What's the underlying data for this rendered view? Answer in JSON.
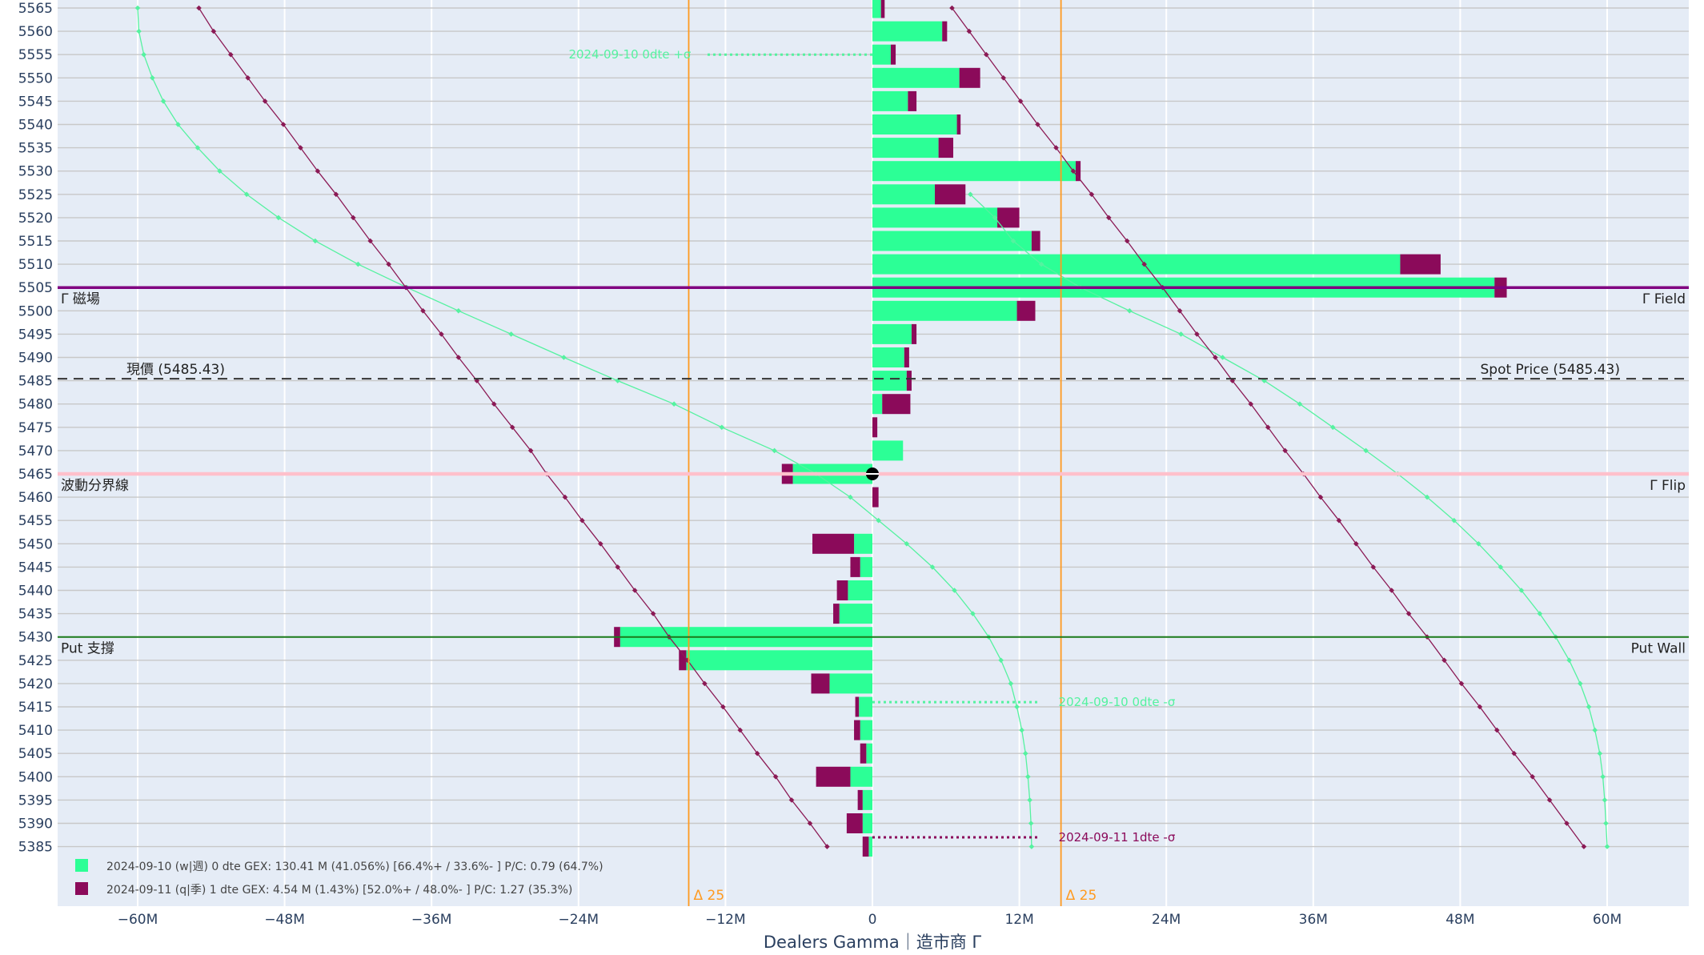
{
  "chart_data": {
    "type": "bar",
    "orientation": "horizontal",
    "xlabel": "Dealers Gamma｜造市商 Γ",
    "xlim": [
      -66000000,
      68000000
    ],
    "ylim": [
      5381,
      5567
    ],
    "x_ticks": [
      {
        "value": -60000000,
        "label": "−60M"
      },
      {
        "value": -48000000,
        "label": "−48M"
      },
      {
        "value": -36000000,
        "label": "−36M"
      },
      {
        "value": -24000000,
        "label": "−24M"
      },
      {
        "value": -12000000,
        "label": "−12M"
      },
      {
        "value": 0,
        "label": "0"
      },
      {
        "value": 12000000,
        "label": "12M"
      },
      {
        "value": 24000000,
        "label": "24M"
      },
      {
        "value": 36000000,
        "label": "36M"
      },
      {
        "value": 48000000,
        "label": "48M"
      },
      {
        "value": 60000000,
        "label": "60M"
      }
    ],
    "y_ticks": [
      5385,
      5390,
      5395,
      5400,
      5405,
      5410,
      5415,
      5420,
      5425,
      5430,
      5435,
      5440,
      5445,
      5450,
      5455,
      5460,
      5465,
      5470,
      5475,
      5480,
      5485,
      5490,
      5495,
      5500,
      5505,
      5510,
      5515,
      5520,
      5525,
      5530,
      5535,
      5540,
      5545,
      5550,
      5555,
      5560,
      5565
    ],
    "grid": true,
    "colors": {
      "series_0dte": "#2cff96",
      "series_1dte": "#8b0a5a",
      "line_0dte": "#55f2a0",
      "line_1dte": "#8b1a55",
      "gamma_field": "#800080",
      "gamma_flip": "#ffc0cb",
      "put_wall": "#1a7a1a",
      "spot": "#333333",
      "delta": "#ff9a1f",
      "plot_bg": "#e5ecf6"
    },
    "series": [
      {
        "name": "2024-09-10 (w|週)",
        "strikes": [
          5565,
          5560,
          5555,
          5550,
          5545,
          5540,
          5535,
          5530,
          5525,
          5520,
          5515,
          5510,
          5505,
          5500,
          5495,
          5490,
          5485,
          5480,
          5475,
          5470,
          5465,
          5460,
          5455,
          5450,
          5445,
          5440,
          5435,
          5430,
          5425,
          5420,
          5415,
          5410,
          5405,
          5400,
          5395,
          5390,
          5385
        ],
        "values": [
          700000,
          5700000,
          1500000,
          7100000,
          2900000,
          6900000,
          5400000,
          16600000,
          5100000,
          10200000,
          13000000,
          43100000,
          50800000,
          11800000,
          3200000,
          2600000,
          2800000,
          800000,
          0,
          2500000,
          -6500000,
          0,
          0,
          -1500000,
          -1000000,
          -2000000,
          -2700000,
          -20600000,
          -15200000,
          -3500000,
          -1100000,
          -1000000,
          -500000,
          -1800000,
          -800000,
          -800000,
          -300000
        ]
      },
      {
        "name": "2024-09-11 (q|季)",
        "strikes": [
          5565,
          5560,
          5555,
          5550,
          5545,
          5540,
          5535,
          5530,
          5525,
          5520,
          5515,
          5510,
          5505,
          5500,
          5495,
          5490,
          5485,
          5480,
          5475,
          5470,
          5465,
          5460,
          5455,
          5450,
          5445,
          5440,
          5435,
          5430,
          5425,
          5420,
          5415,
          5410,
          5405,
          5400,
          5395,
          5390,
          5385
        ],
        "values": [
          300000,
          400000,
          400000,
          1700000,
          700000,
          300000,
          1200000,
          400000,
          2500000,
          1800000,
          700000,
          3300000,
          1000000,
          1500000,
          400000,
          400000,
          400000,
          2300000,
          400000,
          0,
          -900000,
          500000,
          0,
          -3400000,
          -800000,
          -900000,
          -500000,
          -500000,
          -600000,
          -1500000,
          -300000,
          -500000,
          -500000,
          -2800000,
          -400000,
          -1300000,
          -500000
        ]
      }
    ],
    "profile_lines": [
      {
        "name": "2024-09-10 0dte",
        "color": "#55f2a0",
        "left": [
          [
            5565,
            -60000000
          ],
          [
            5560,
            -59900000
          ],
          [
            5555,
            -59500000
          ],
          [
            5550,
            -58800000
          ],
          [
            5545,
            -57900000
          ],
          [
            5540,
            -56700000
          ],
          [
            5535,
            -55100000
          ],
          [
            5530,
            -53300000
          ],
          [
            5525,
            -51100000
          ],
          [
            5520,
            -48500000
          ],
          [
            5515,
            -45500000
          ],
          [
            5510,
            -42000000
          ],
          [
            5505,
            -38000000
          ],
          [
            5500,
            -33800000
          ],
          [
            5495,
            -29500000
          ],
          [
            5490,
            -25200000
          ],
          [
            5485,
            -20800000
          ],
          [
            5480,
            -16200000
          ],
          [
            5475,
            -12300000
          ],
          [
            5470,
            -8000000
          ],
          [
            5465,
            -4600000
          ],
          [
            5460,
            -1800000
          ],
          [
            5455,
            500000
          ],
          [
            5450,
            2800000
          ],
          [
            5445,
            4900000
          ],
          [
            5440,
            6700000
          ],
          [
            5435,
            8200000
          ],
          [
            5430,
            9500000
          ],
          [
            5425,
            10500000
          ],
          [
            5420,
            11300000
          ],
          [
            5415,
            11800000
          ],
          [
            5410,
            12200000
          ],
          [
            5405,
            12500000
          ],
          [
            5400,
            12700000
          ],
          [
            5395,
            12850000
          ],
          [
            5390,
            12950000
          ],
          [
            5385,
            13000000
          ]
        ],
        "right": [
          [
            5525,
            8000000
          ],
          [
            5520,
            10000000
          ],
          [
            5515,
            11500000
          ],
          [
            5510,
            13800000
          ],
          [
            5505,
            17000000
          ],
          [
            5500,
            21000000
          ],
          [
            5495,
            25200000
          ],
          [
            5490,
            28600000
          ],
          [
            5485,
            32000000
          ],
          [
            5480,
            34900000
          ],
          [
            5475,
            37600000
          ],
          [
            5470,
            40300000
          ],
          [
            5465,
            42900000
          ],
          [
            5460,
            45300000
          ],
          [
            5455,
            47500000
          ],
          [
            5450,
            49500000
          ],
          [
            5445,
            51300000
          ],
          [
            5440,
            53000000
          ],
          [
            5435,
            54500000
          ],
          [
            5430,
            55800000
          ],
          [
            5425,
            56900000
          ],
          [
            5420,
            57800000
          ],
          [
            5415,
            58500000
          ],
          [
            5410,
            59000000
          ],
          [
            5405,
            59400000
          ],
          [
            5400,
            59650000
          ],
          [
            5395,
            59800000
          ],
          [
            5390,
            59900000
          ],
          [
            5385,
            60000000
          ]
        ]
      },
      {
        "name": "2024-09-11 1dte",
        "color": "#8b1a55",
        "left": [
          [
            5565,
            -55000000
          ],
          [
            5560,
            -53800000
          ],
          [
            5555,
            -52400000
          ],
          [
            5550,
            -51000000
          ],
          [
            5545,
            -49600000
          ],
          [
            5540,
            -48100000
          ],
          [
            5535,
            -46700000
          ],
          [
            5530,
            -45300000
          ],
          [
            5525,
            -43800000
          ],
          [
            5520,
            -42400000
          ],
          [
            5515,
            -41000000
          ],
          [
            5510,
            -39500000
          ],
          [
            5505,
            -38100000
          ],
          [
            5500,
            -36700000
          ],
          [
            5495,
            -35200000
          ],
          [
            5490,
            -33800000
          ],
          [
            5485,
            -32300000
          ],
          [
            5480,
            -30900000
          ],
          [
            5475,
            -29400000
          ],
          [
            5470,
            -27900000
          ],
          [
            5465,
            -26600000
          ],
          [
            5460,
            -25100000
          ],
          [
            5455,
            -23700000
          ],
          [
            5450,
            -22200000
          ],
          [
            5445,
            -20800000
          ],
          [
            5440,
            -19400000
          ],
          [
            5435,
            -17900000
          ],
          [
            5430,
            -16600000
          ],
          [
            5425,
            -15100000
          ],
          [
            5420,
            -13700000
          ],
          [
            5415,
            -12200000
          ],
          [
            5410,
            -10800000
          ],
          [
            5405,
            -9400000
          ],
          [
            5400,
            -7900000
          ],
          [
            5395,
            -6600000
          ],
          [
            5390,
            -5100000
          ],
          [
            5385,
            -3700000
          ]
        ],
        "right": [
          [
            5565,
            6500000
          ],
          [
            5560,
            7900000
          ],
          [
            5555,
            9300000
          ],
          [
            5550,
            10700000
          ],
          [
            5545,
            12100000
          ],
          [
            5540,
            13500000
          ],
          [
            5535,
            15000000
          ],
          [
            5530,
            16400000
          ],
          [
            5525,
            17900000
          ],
          [
            5520,
            19300000
          ],
          [
            5515,
            20800000
          ],
          [
            5510,
            22200000
          ],
          [
            5505,
            23700000
          ],
          [
            5500,
            25100000
          ],
          [
            5495,
            26500000
          ],
          [
            5490,
            28000000
          ],
          [
            5485,
            29400000
          ],
          [
            5480,
            30900000
          ],
          [
            5475,
            32300000
          ],
          [
            5470,
            33700000
          ],
          [
            5465,
            35200000
          ],
          [
            5460,
            36600000
          ],
          [
            5455,
            38100000
          ],
          [
            5450,
            39500000
          ],
          [
            5445,
            40900000
          ],
          [
            5440,
            42400000
          ],
          [
            5435,
            43800000
          ],
          [
            5430,
            45300000
          ],
          [
            5425,
            46700000
          ],
          [
            5420,
            48100000
          ],
          [
            5415,
            49600000
          ],
          [
            5410,
            51000000
          ],
          [
            5405,
            52400000
          ],
          [
            5400,
            53900000
          ],
          [
            5395,
            55300000
          ],
          [
            5390,
            56700000
          ],
          [
            5385,
            58100000
          ]
        ]
      }
    ],
    "reference_lines": {
      "gamma_field": {
        "y": 5505,
        "left_label": "Γ 磁場",
        "right_label": "Γ Field"
      },
      "spot": {
        "y": 5485.43,
        "left_label": "現價 (5485.43)",
        "right_label": "Spot Price (5485.43)"
      },
      "gamma_flip": {
        "y": 5465,
        "left_label": "波動分界線",
        "right_label": "Γ Flip"
      },
      "put_wall": {
        "y": 5430,
        "left_label": "Put 支撐",
        "right_label": "Put Wall"
      }
    },
    "delta_lines": [
      {
        "x": -15000000,
        "label": "Δ 25"
      },
      {
        "x": 15400000,
        "label": "Δ 25"
      }
    ],
    "sigma_annotations": [
      {
        "y": 5555,
        "x_start": 0,
        "x_end": -13500000,
        "label": "2024-09-10 0dte +σ",
        "color": "#55f2a0"
      },
      {
        "y": 5416,
        "x_start": 0,
        "x_end": 13500000,
        "label": "2024-09-10 0dte -σ",
        "color": "#55f2a0"
      },
      {
        "y": 5387,
        "x_start": 0,
        "x_end": 13500000,
        "label": "2024-09-11 1dte -σ",
        "color": "#8b0a5a"
      }
    ],
    "flip_marker": {
      "y": 5465,
      "x": 0
    },
    "legend": {
      "placement": "bottom-left",
      "entries": [
        {
          "color": "#2cff96",
          "text": "2024-09-10 (w|週)    0 dte    GEX: 130.41 M (41.056%)       [66.4%+ / 33.6%- ]       P/C: 0.79    (64.7%)"
        },
        {
          "color": "#8b0a5a",
          "text": "2024-09-11 (q|季)    1 dte    GEX: 4.54 M (1.43%)        [52.0%+ / 48.0%- ]      P/C: 1.27    (35.3%)"
        }
      ]
    }
  }
}
